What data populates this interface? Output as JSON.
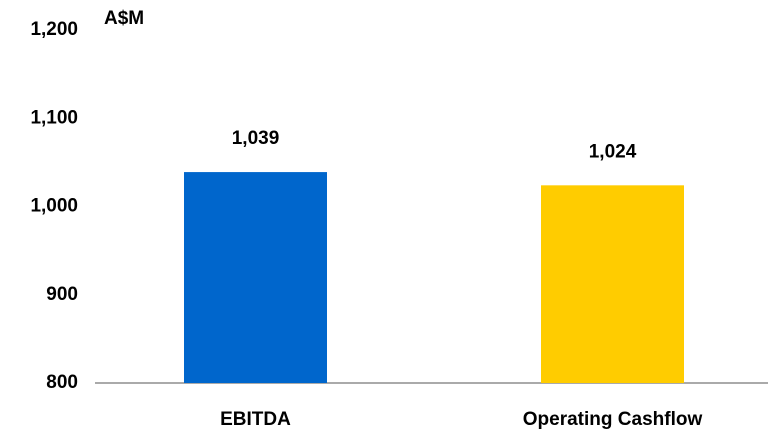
{
  "chart_data": {
    "type": "bar",
    "y_axis_label": "A$M",
    "categories": [
      "EBITDA",
      "Operating Cashflow"
    ],
    "values": [
      1039,
      1024
    ],
    "value_labels": [
      "1,039",
      "1,024"
    ],
    "colors": [
      "#0066cc",
      "#ffcc00"
    ],
    "ylim": [
      800,
      1200
    ],
    "yticks": [
      800,
      900,
      {
        "value": 1000,
        "label": "1,000"
      },
      {
        "value": 1100,
        "label": "1,100"
      },
      {
        "value": 1200,
        "label": "1,200"
      }
    ],
    "grid": false
  }
}
